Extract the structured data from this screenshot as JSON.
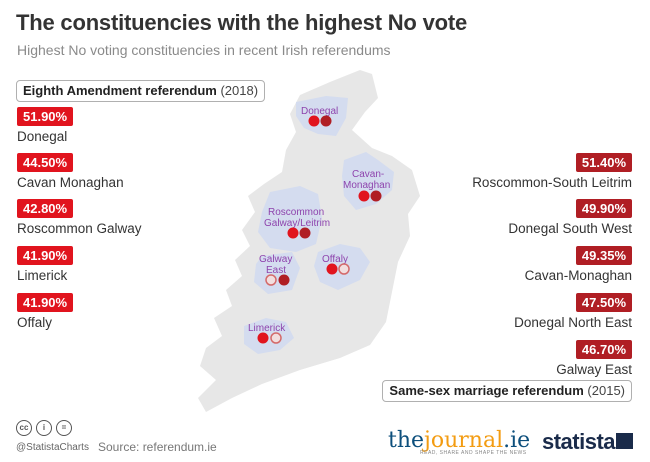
{
  "title": "The constituencies with the highest No vote",
  "subtitle": "Highest No voting constituencies in recent Irish referendums",
  "eighth_box": {
    "name": "Eighth Amendment referendum",
    "year": "(2018)"
  },
  "ssm_box": {
    "name": "Same-sex marriage referendum",
    "year": "(2015)"
  },
  "chart_data": {
    "type": "table",
    "title": "The constituencies with the highest No vote",
    "subtitle": "Highest No voting constituencies in recent Irish referendums",
    "series": [
      {
        "name": "Eighth Amendment referendum (2018)",
        "color": "#e1141e",
        "rows": [
          {
            "value": "51.90%",
            "name": "Donegal"
          },
          {
            "value": "44.50%",
            "name": "Cavan Monaghan"
          },
          {
            "value": "42.80%",
            "name": "Roscommon Galway"
          },
          {
            "value": "41.90%",
            "name": "Limerick"
          },
          {
            "value": "41.90%",
            "name": "Offaly"
          }
        ]
      },
      {
        "name": "Same-sex marriage referendum (2015)",
        "color": "#b01e24",
        "rows": [
          {
            "value": "51.40%",
            "name": "Roscommon-South Leitrim"
          },
          {
            "value": "49.90%",
            "name": "Donegal South West"
          },
          {
            "value": "49.35%",
            "name": "Cavan-Monaghan"
          },
          {
            "value": "47.50%",
            "name": "Donegal North East"
          },
          {
            "value": "46.70%",
            "name": "Galway East"
          }
        ]
      }
    ],
    "map_labels": [
      "Donegal",
      "Cavan-",
      "Monaghan",
      "Roscommon",
      "Galway/Leitrim",
      "Offaly",
      "Galway",
      "East",
      "Limerick"
    ]
  },
  "colors": {
    "eighth": "#e1141e",
    "ssm": "#b01e24",
    "highlight": "#d4dcef",
    "island": "#e7e7e7",
    "label": "#8e44ad"
  },
  "footer": {
    "handle": "@StatistaCharts",
    "source": "Source: referendum.ie",
    "journal_the": "the",
    "journal_main": "journal",
    "journal_dot": ".ie",
    "journal_tag": "READ, SHARE AND SHAPE THE NEWS",
    "statista": "statista"
  },
  "icons": [
    "cc-icon",
    "person-icon",
    "equals-icon",
    "statista-logo-icon"
  ]
}
